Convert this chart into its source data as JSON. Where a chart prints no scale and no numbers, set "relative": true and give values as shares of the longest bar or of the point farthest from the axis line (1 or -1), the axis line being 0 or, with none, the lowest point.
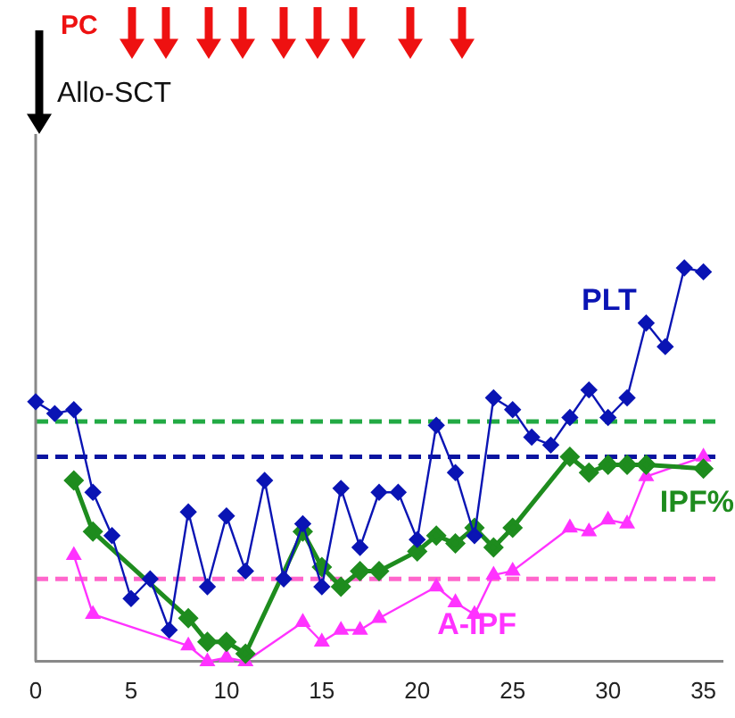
{
  "chart_data": {
    "type": "line",
    "relative": true,
    "legend": false,
    "grid": false,
    "xlim": [
      0,
      36
    ],
    "xticks": [
      0,
      5,
      10,
      15,
      20,
      25,
      30,
      35
    ],
    "series": [
      {
        "name": "PLT",
        "color": "#0a14b4",
        "marker": "diamond",
        "x": [
          0,
          1,
          2,
          3,
          4,
          5,
          6,
          7,
          8,
          9,
          10,
          11,
          12,
          13,
          14,
          15,
          16,
          17,
          18,
          19,
          20,
          21,
          22,
          23,
          24,
          25,
          26,
          27,
          28,
          29,
          30,
          31,
          32,
          33,
          34,
          35
        ],
        "values": [
          0.66,
          0.63,
          0.64,
          0.43,
          0.32,
          0.16,
          0.21,
          0.08,
          0.38,
          0.19,
          0.37,
          0.23,
          0.46,
          0.21,
          0.35,
          0.19,
          0.44,
          0.29,
          0.43,
          0.43,
          0.31,
          0.6,
          0.48,
          0.32,
          0.67,
          0.64,
          0.57,
          0.55,
          0.62,
          0.69,
          0.62,
          0.67,
          0.86,
          0.8,
          1,
          0.99
        ]
      },
      {
        "name": "IPF%",
        "color": "#1e8c1e",
        "marker": "diamond",
        "x": [
          2,
          3,
          8,
          9,
          10,
          11,
          14,
          15,
          16,
          17,
          18,
          20,
          21,
          22,
          23,
          24,
          25,
          28,
          29,
          30,
          31,
          32,
          35
        ],
        "values": [
          0.46,
          0.33,
          0.11,
          0.05,
          0.05,
          0.02,
          0.33,
          0.24,
          0.19,
          0.23,
          0.23,
          0.28,
          0.32,
          0.3,
          0.34,
          0.29,
          0.34,
          0.52,
          0.48,
          0.5,
          0.5,
          0.5,
          0.49
        ]
      },
      {
        "name": "A-IPF",
        "color": "#ff33ff",
        "marker": "triangle",
        "x": [
          2,
          3,
          8,
          9,
          10,
          11,
          14,
          15,
          16,
          17,
          18,
          21,
          22,
          23,
          24,
          25,
          28,
          29,
          30,
          31,
          32,
          35
        ],
        "values": [
          0.27,
          0.12,
          0.04,
          0,
          0.01,
          0,
          0.1,
          0.05,
          0.08,
          0.08,
          0.11,
          0.19,
          0.15,
          0.12,
          0.22,
          0.23,
          0.34,
          0.33,
          0.36,
          0.35,
          0.47,
          0.52
        ]
      }
    ],
    "ref_lines": [
      {
        "axis": "y",
        "value": 0.61,
        "color": "#22aa44",
        "line_style": "dashed"
      },
      {
        "axis": "y",
        "value": 0.52,
        "color": "#0a14a0",
        "line_style": "dashed"
      },
      {
        "axis": "y",
        "value": 0.21,
        "color": "#ff66cc",
        "line_style": "dashed"
      }
    ],
    "annotations": [
      "PC",
      "Allo-SCT"
    ]
  }
}
